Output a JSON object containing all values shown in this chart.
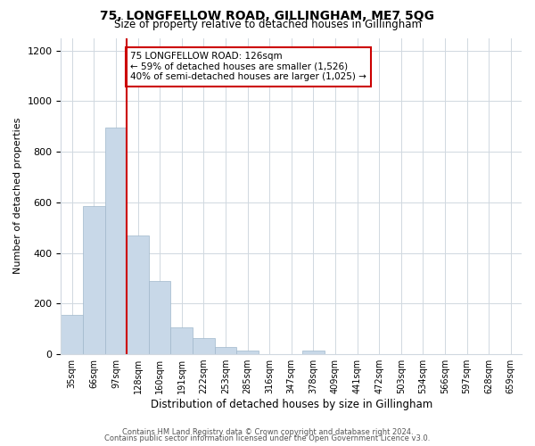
{
  "title": "75, LONGFELLOW ROAD, GILLINGHAM, ME7 5QG",
  "subtitle": "Size of property relative to detached houses in Gillingham",
  "xlabel": "Distribution of detached houses by size in Gillingham",
  "ylabel": "Number of detached properties",
  "bar_color": "#c8d8e8",
  "bar_edge_color": "#a0b8cc",
  "bins": [
    "35sqm",
    "66sqm",
    "97sqm",
    "128sqm",
    "160sqm",
    "191sqm",
    "222sqm",
    "253sqm",
    "285sqm",
    "316sqm",
    "347sqm",
    "378sqm",
    "409sqm",
    "441sqm",
    "472sqm",
    "503sqm",
    "534sqm",
    "566sqm",
    "597sqm",
    "628sqm",
    "659sqm"
  ],
  "values": [
    155,
    585,
    895,
    470,
    290,
    105,
    63,
    28,
    13,
    0,
    0,
    13,
    0,
    0,
    0,
    0,
    0,
    0,
    0,
    0,
    0
  ],
  "property_line_x": 2.5,
  "property_line_color": "#cc0000",
  "annotation_text": "75 LONGFELLOW ROAD: 126sqm\n← 59% of detached houses are smaller (1,526)\n40% of semi-detached houses are larger (1,025) →",
  "annotation_box_color": "#ffffff",
  "annotation_box_edge": "#cc0000",
  "ylim": [
    0,
    1250
  ],
  "yticks": [
    0,
    200,
    400,
    600,
    800,
    1000,
    1200
  ],
  "footer_line1": "Contains HM Land Registry data © Crown copyright and database right 2024.",
  "footer_line2": "Contains public sector information licensed under the Open Government Licence v3.0.",
  "background_color": "#ffffff",
  "grid_color": "#d0d8e0"
}
